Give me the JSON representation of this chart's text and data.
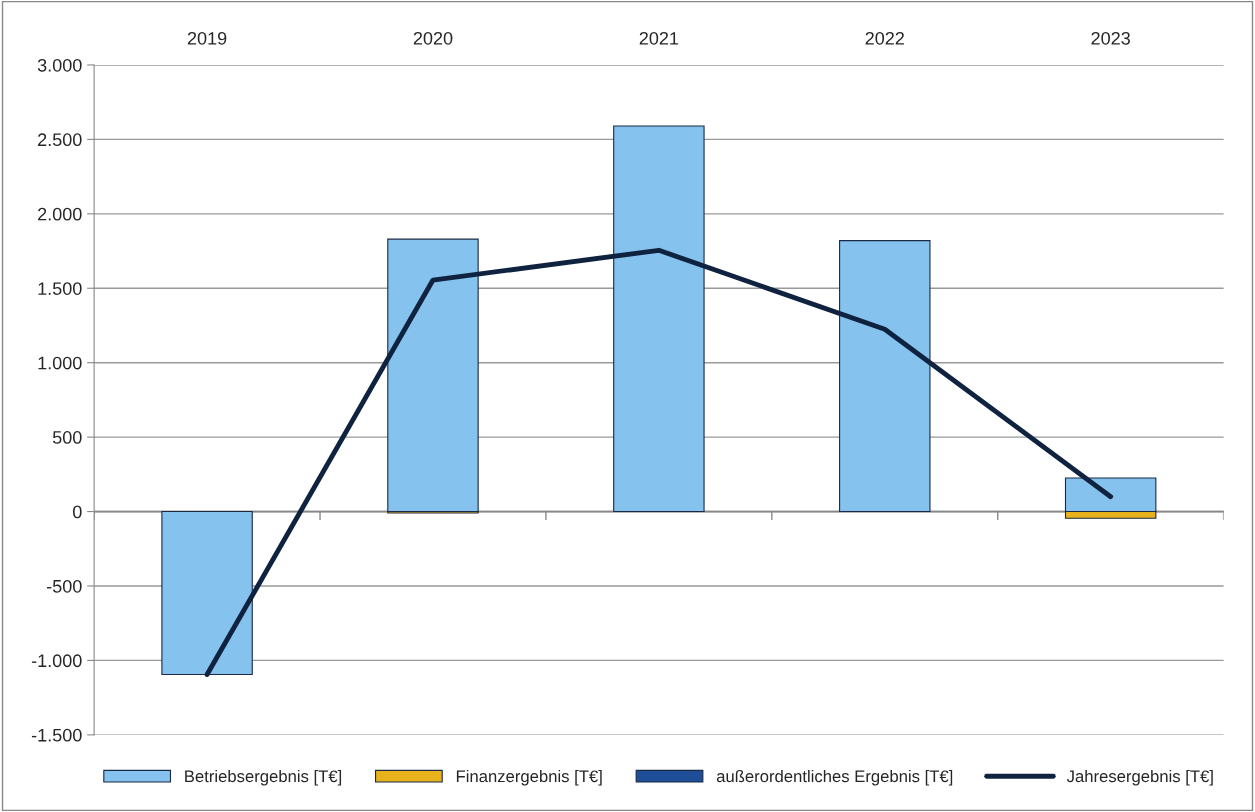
{
  "chart_data": {
    "type": "bar",
    "stacked": true,
    "categories": [
      "2019",
      "2020",
      "2021",
      "2022",
      "2023"
    ],
    "series": [
      {
        "name": "Betriebsergebnis [T€]",
        "color": "#85c2ee",
        "values": [
          -1095,
          1830,
          2590,
          1820,
          225
        ]
      },
      {
        "name": "Finanzergebnis [T€]",
        "color": "#e8b21c",
        "values": [
          null,
          -10,
          null,
          null,
          -45
        ]
      },
      {
        "name": "außerordentliches Ergebnis [T€]",
        "color": "#1f4e99",
        "values": [
          null,
          null,
          null,
          null,
          null
        ]
      },
      {
        "name": "Jahresergebnis [T€]",
        "type": "line",
        "color": "#0f2341",
        "values": [
          -1095,
          1555,
          1755,
          1225,
          100
        ]
      }
    ],
    "ylim": [
      -1500,
      3000
    ],
    "yticks": [
      {
        "value": -1500,
        "label": "-1.500"
      },
      {
        "value": -1000,
        "label": "-1.000"
      },
      {
        "value": -500,
        "label": "-500"
      },
      0,
      500,
      {
        "value": 1000,
        "label": "1.000"
      },
      {
        "value": 1500,
        "label": "1.500"
      },
      {
        "value": 2000,
        "label": "2.000"
      },
      {
        "value": 2500,
        "label": "2.500"
      },
      {
        "value": 3000,
        "label": "3.000"
      }
    ],
    "grid": "y",
    "legend": "bottom"
  }
}
